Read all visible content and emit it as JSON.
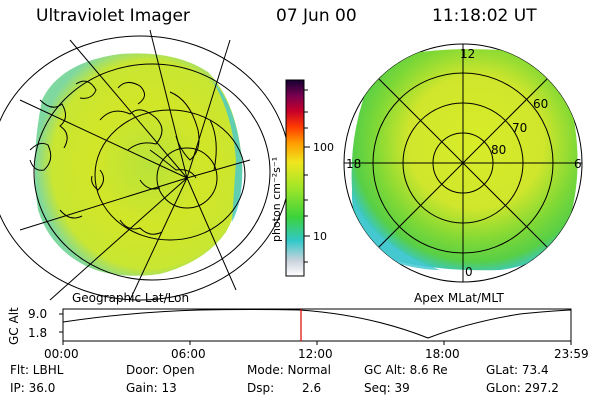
{
  "header": {
    "title": "Ultraviolet Imager",
    "date": "07 Jun 00",
    "time": "11:18:02 UT"
  },
  "colorbar": {
    "unit_label": "photon cm⁻²s⁻¹",
    "ticks": [
      "100",
      "10"
    ],
    "scale": "log"
  },
  "geo_panel": {
    "label": "Geographic Lat/Lon"
  },
  "apex_panel": {
    "label": "Apex MLat/MLT",
    "mlt_labels": [
      "12",
      "18",
      "6",
      "0"
    ],
    "mlat_labels": [
      "60",
      "70",
      "80"
    ]
  },
  "altitude_plot": {
    "ylabel": "GC Alt",
    "yticks": [
      "9.0",
      "1.8"
    ],
    "xticks": [
      "00:00",
      "06:00",
      "12:00",
      "18:00",
      "23:59"
    ],
    "marker_time": "11:18"
  },
  "info": {
    "flt": "Flt: LBHL",
    "ip": "IP: 36.0",
    "door": "Door: Open",
    "gain": "Gain: 13",
    "mode": "Mode: Normal",
    "dsp_label": "Dsp:",
    "dsp_value": "2.6",
    "gc_alt": "GC Alt: 8.6 Re",
    "seq": "Seq: 39",
    "glat": "GLat: 73.4",
    "glon": "GLon: 297.2"
  },
  "colors": {
    "aurora_green": "#5ad21e",
    "aurora_yellow": "#d2e628",
    "edge_cyan": "#46c8d2",
    "marker_red": "#e00000"
  }
}
